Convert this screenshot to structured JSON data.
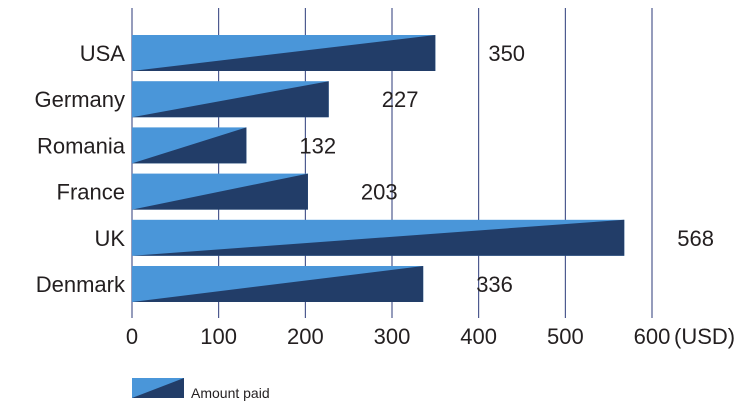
{
  "chart_data": {
    "type": "bar",
    "orientation": "horizontal",
    "categories": [
      "USA",
      "Germany",
      "Romania",
      "France",
      "UK",
      "Denmark"
    ],
    "series": [
      {
        "name": "Amount paid",
        "values": [
          350,
          227,
          132,
          203,
          568,
          336
        ]
      }
    ],
    "data_labels": [
      "350",
      "227",
      "132",
      "203",
      "568",
      "336"
    ],
    "x_ticks": [
      "0",
      "100",
      "200",
      "300",
      "400",
      "500",
      "600"
    ],
    "x_unit_label": "(USD)",
    "xlim": [
      0,
      600
    ],
    "grid": "vertical",
    "legend_position": "bottom-left",
    "colors": {
      "bar_light": "#4a96d9",
      "bar_dark": "#223d68",
      "grid": "#2b3a7a"
    }
  }
}
